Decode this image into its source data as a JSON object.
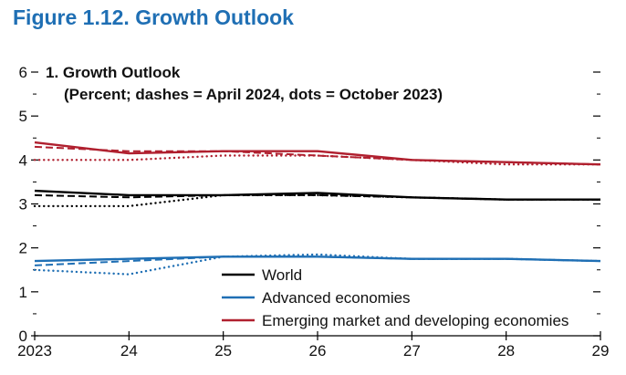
{
  "figure_title": "Figure 1.12.  Growth Outlook",
  "chart_data": {
    "type": "line",
    "title": "1. Growth Outlook",
    "subtitle": "(Percent; dashes = April 2024, dots = October 2023)",
    "xlabel": "",
    "ylabel": "",
    "x_tick_labels": [
      "2023",
      "24",
      "25",
      "26",
      "27",
      "28",
      "29"
    ],
    "y_tick_labels": [
      "0",
      "1",
      "2",
      "3",
      "4",
      "5",
      "6"
    ],
    "x": [
      2023,
      2024,
      2025,
      2026,
      2027,
      2028,
      2029
    ],
    "xlim": [
      2023,
      2029
    ],
    "ylim": [
      0,
      6
    ],
    "grid": false,
    "legend_position": "bottom-right",
    "series": [
      {
        "name": "World",
        "color": "#000000",
        "style": "solid",
        "values": [
          3.3,
          3.2,
          3.2,
          3.25,
          3.15,
          3.1,
          3.1
        ]
      },
      {
        "color": "#000000",
        "style": "dashed",
        "values": [
          3.2,
          3.15,
          3.2,
          3.2,
          3.15,
          3.1,
          3.1
        ]
      },
      {
        "color": "#000000",
        "style": "dotted",
        "values": [
          2.95,
          2.95,
          3.2,
          3.2,
          3.15,
          3.1,
          3.1
        ]
      },
      {
        "name": "Advanced economies",
        "color": "#1f6fb4",
        "style": "solid",
        "values": [
          1.7,
          1.75,
          1.8,
          1.8,
          1.75,
          1.75,
          1.7
        ]
      },
      {
        "color": "#1f6fb4",
        "style": "dashed",
        "values": [
          1.6,
          1.7,
          1.8,
          1.8,
          1.75,
          1.75,
          1.7
        ]
      },
      {
        "color": "#1f6fb4",
        "style": "dotted",
        "values": [
          1.5,
          1.4,
          1.8,
          1.85,
          1.75,
          1.75,
          1.7
        ]
      },
      {
        "name": "Emerging market and developing economies",
        "color": "#b0202f",
        "style": "solid",
        "values": [
          4.4,
          4.15,
          4.2,
          4.2,
          4.0,
          3.95,
          3.9
        ]
      },
      {
        "color": "#b0202f",
        "style": "dashed",
        "values": [
          4.3,
          4.2,
          4.2,
          4.1,
          4.0,
          3.95,
          3.9
        ]
      },
      {
        "color": "#b0202f",
        "style": "dotted",
        "values": [
          4.0,
          4.0,
          4.1,
          4.1,
          4.0,
          3.9,
          3.9
        ]
      }
    ]
  }
}
